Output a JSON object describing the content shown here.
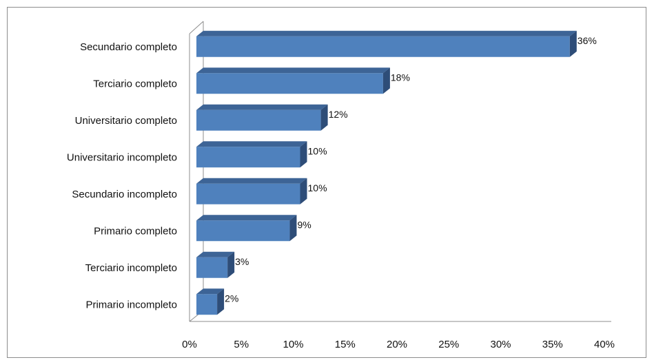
{
  "chart_data": {
    "type": "bar",
    "orientation": "horizontal",
    "style": "3d",
    "categories": [
      "Secundario completo",
      "Terciario completo",
      "Universitario completo",
      "Universitario incompleto",
      "Secundario incompleto",
      "Primario completo",
      "Terciario incompleto",
      "Primario incompleto"
    ],
    "values": [
      36,
      18,
      12,
      10,
      10,
      9,
      3,
      2
    ],
    "data_labels": [
      "36%",
      "18%",
      "12%",
      "10%",
      "10%",
      "9%",
      "3%",
      "2%"
    ],
    "xlim": [
      0,
      40
    ],
    "x_ticks": [
      0,
      5,
      10,
      15,
      20,
      25,
      30,
      35,
      40
    ],
    "x_tick_labels": [
      "0%",
      "5%",
      "10%",
      "15%",
      "20%",
      "25%",
      "30%",
      "35%",
      "40%"
    ],
    "title": "",
    "xlabel": "",
    "ylabel": "",
    "grid": false,
    "legend": "none",
    "colors": {
      "bar_front": "#4f81bd",
      "bar_top": "#3d6496",
      "bar_side": "#2e4d78",
      "axis": "#8c8c8c"
    }
  }
}
